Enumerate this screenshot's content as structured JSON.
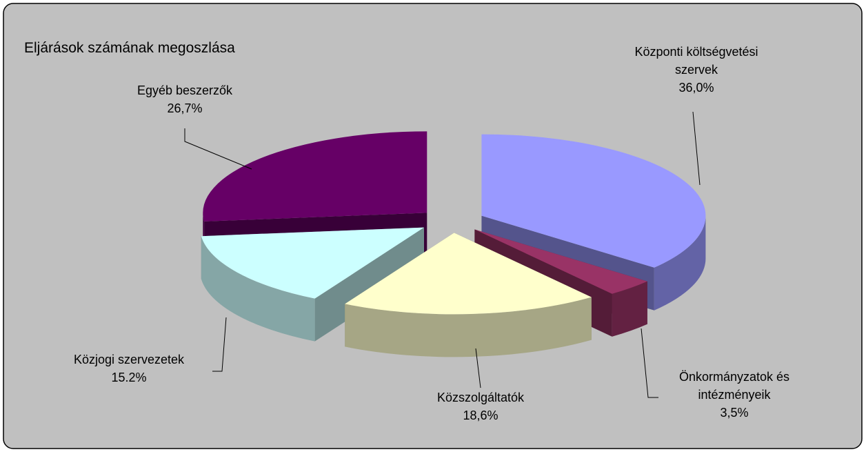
{
  "chart_data": {
    "type": "pie",
    "title": "Eljárások számának megoszlása",
    "categories": [
      "Központi költségvetési szervek",
      "Önkormányzatok és intézményeik",
      "Közszolgáltatók",
      "Közjogi szervezetek",
      "Egyéb beszerzők"
    ],
    "values": [
      36.0,
      3.5,
      18.6,
      15.2,
      26.7
    ],
    "value_labels": [
      "36,0%",
      "3,5%",
      "18,6%",
      "15.2%",
      "26,7%"
    ],
    "colors": [
      "#9999ff",
      "#993366",
      "#ffffcc",
      "#ccffff",
      "#660066"
    ]
  }
}
